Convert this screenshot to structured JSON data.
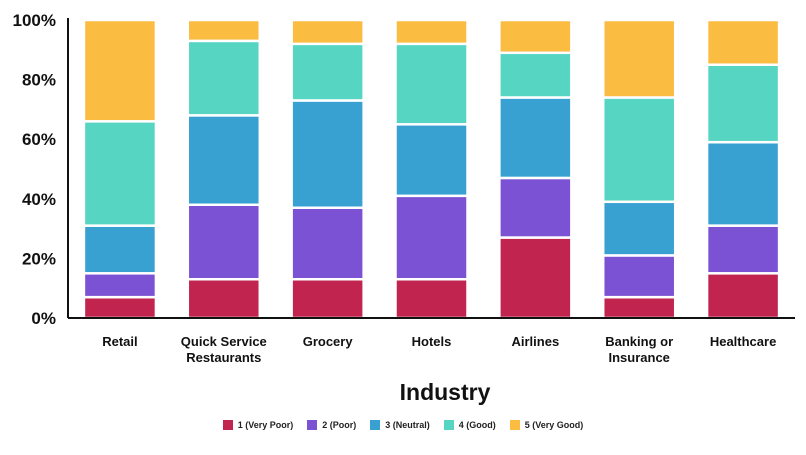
{
  "chart_data": {
    "type": "bar",
    "stacked": true,
    "title": "",
    "xlabel": "Industry",
    "ylabel": "",
    "ylim": [
      0,
      100
    ],
    "yticks": [
      "0%",
      "20%",
      "40%",
      "60%",
      "80%",
      "100%"
    ],
    "categories": [
      [
        "Retail"
      ],
      [
        "Quick Service",
        "Restaurants"
      ],
      [
        "Grocery"
      ],
      [
        "Hotels"
      ],
      [
        "Airlines"
      ],
      [
        "Banking or",
        "Insurance"
      ],
      [
        "Healthcare"
      ]
    ],
    "series": [
      {
        "name": "1 (Very Poor)",
        "color": "#c0244f",
        "values": [
          7,
          13,
          13,
          13,
          27,
          7,
          15
        ]
      },
      {
        "name": "2 (Poor)",
        "color": "#7b52d3",
        "values": [
          8,
          25,
          24,
          28,
          20,
          14,
          16
        ]
      },
      {
        "name": "3 (Neutral)",
        "color": "#38a1d2",
        "values": [
          16,
          30,
          36,
          24,
          27,
          18,
          28
        ]
      },
      {
        "name": "4 (Good)",
        "color": "#56d5c2",
        "values": [
          35,
          25,
          19,
          27,
          15,
          35,
          26
        ]
      },
      {
        "name": "5 (Very Good)",
        "color": "#fbbc42",
        "values": [
          34,
          7,
          8,
          8,
          11,
          26,
          15
        ]
      }
    ],
    "legend_position": "bottom-center"
  }
}
